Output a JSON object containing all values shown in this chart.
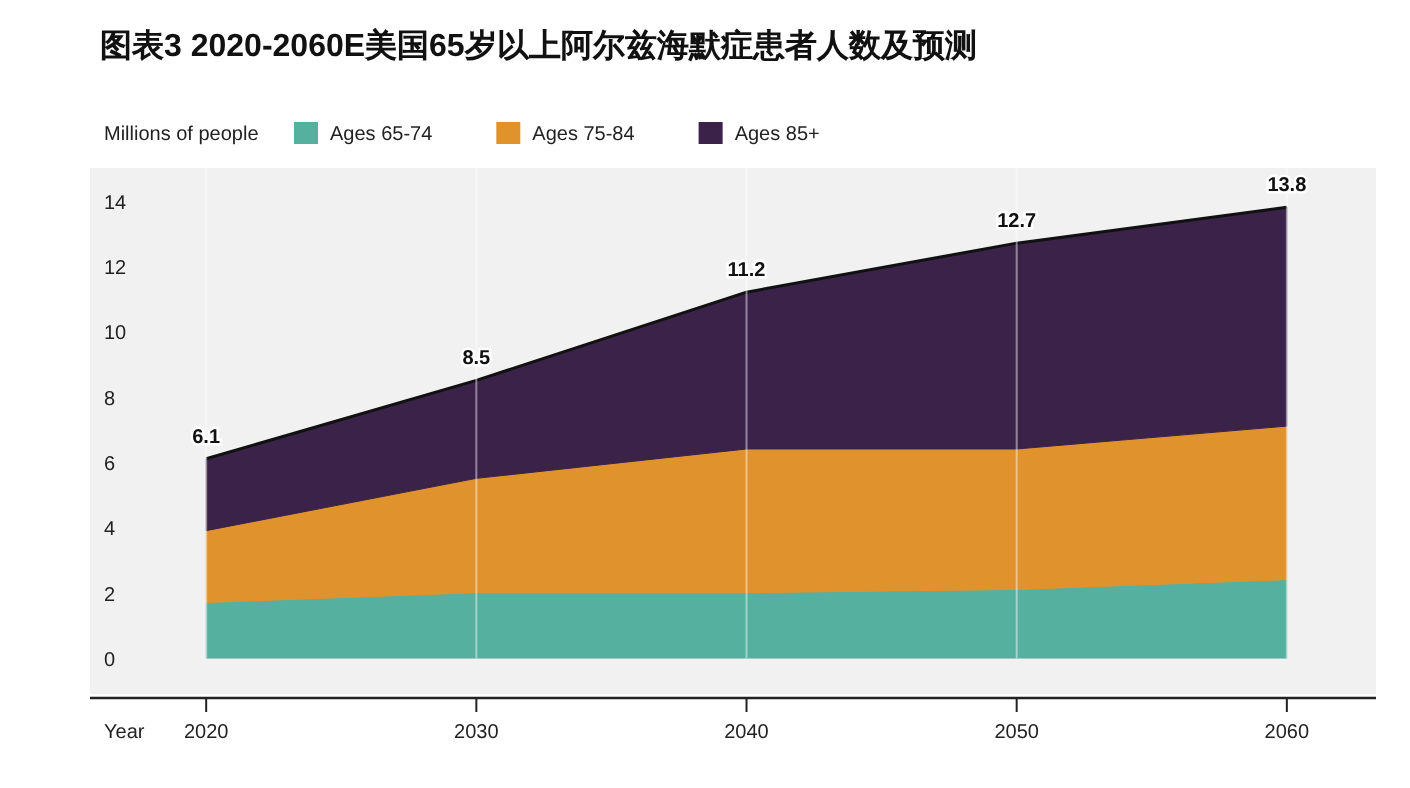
{
  "chart_data": {
    "type": "area",
    "title": "图表3 2020-2060E美国65岁以上阿尔兹海默症患者人数及预测",
    "ylabel": "Millions of people",
    "xlabel": "Year",
    "stacked": true,
    "x": [
      2020,
      2030,
      2040,
      2050,
      2060
    ],
    "xlim": [
      2015.7,
      2063.3
    ],
    "xticks": [
      2020,
      2030,
      2040,
      2050,
      2060
    ],
    "ylim": [
      -1.1,
      15
    ],
    "yticks": [
      0,
      2,
      4,
      6,
      8,
      10,
      12,
      14
    ],
    "grid": "x",
    "legend": "top left",
    "totals": [
      "6.1",
      "8.5",
      "11.2",
      "12.7",
      "13.8"
    ],
    "series": [
      {
        "name": "Ages 65-74",
        "color": "#55b09f",
        "values": [
          1.7,
          2.0,
          2.0,
          2.1,
          2.4
        ]
      },
      {
        "name": "Ages 75-84",
        "color": "#e0922d",
        "values": [
          2.2,
          3.5,
          4.4,
          4.3,
          4.7
        ]
      },
      {
        "name": "Ages 85+",
        "color": "#3a2249",
        "values": [
          2.2,
          3.0,
          4.8,
          6.3,
          6.7
        ]
      }
    ]
  }
}
